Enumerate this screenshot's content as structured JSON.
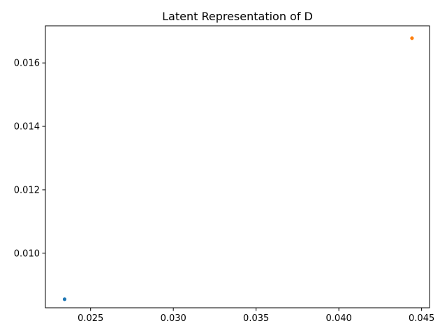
{
  "chart_data": {
    "type": "scatter",
    "title": "Latent Representation of D",
    "xlabel": "",
    "ylabel": "",
    "xlim": [
      0.02227,
      0.04548
    ],
    "ylim": [
      0.00828,
      0.01717
    ],
    "x_ticks": [
      0.025,
      0.03,
      0.035,
      0.04,
      0.045
    ],
    "x_tick_labels": [
      "0.025",
      "0.030",
      "0.035",
      "0.040",
      "0.045"
    ],
    "y_ticks": [
      0.01,
      0.012,
      0.014,
      0.016
    ],
    "y_tick_labels": [
      "0.010",
      "0.012",
      "0.014",
      "0.016"
    ],
    "grid": false,
    "series": [
      {
        "color": "#1f77b4",
        "points": [
          {
            "x": 0.02343,
            "y": 0.00855
          }
        ]
      },
      {
        "color": "#ff7f0e",
        "points": [
          {
            "x": 0.04442,
            "y": 0.01678
          }
        ]
      }
    ]
  }
}
